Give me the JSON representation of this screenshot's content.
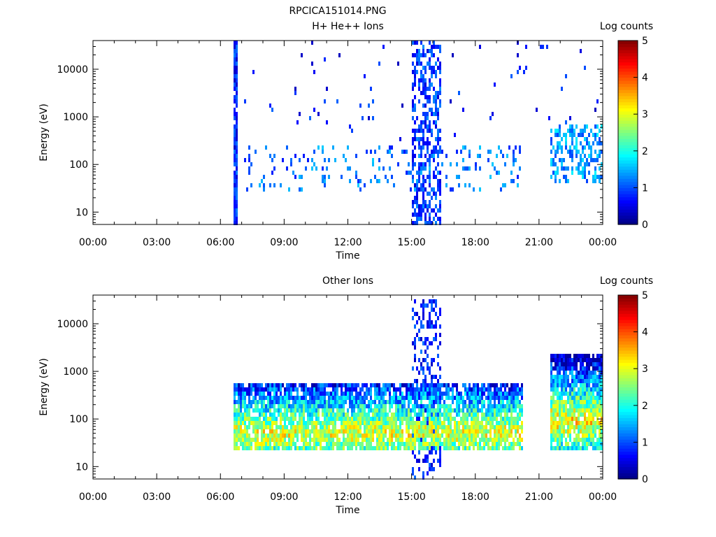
{
  "figure_title": "RPCICA151014.PNG",
  "chart_data": [
    {
      "type": "heatmap",
      "title": "H+ He++ Ions",
      "xlabel": "Time",
      "ylabel": "Energy (eV)",
      "x_ticks": [
        "00:00",
        "03:00",
        "06:00",
        "09:00",
        "12:00",
        "15:00",
        "18:00",
        "21:00",
        "00:00"
      ],
      "xlim_hours": [
        0,
        24
      ],
      "y_scale": "log",
      "y_ticks": [
        "10",
        "100",
        "1000",
        "10000"
      ],
      "ylim": [
        5.5,
        40000
      ],
      "colorbar": {
        "label": "Log counts",
        "ticks": [
          "0",
          "1",
          "2",
          "3",
          "4",
          "5"
        ],
        "range": [
          0,
          5
        ],
        "colormap": "jet"
      },
      "features": [
        {
          "description": "narrow burst all energies",
          "t_start_h": 6.55,
          "t_end_h": 6.8,
          "e_min": 5.5,
          "e_max": 40000,
          "level": 0.6,
          "density": 0.95
        },
        {
          "description": "sparse low-energy ions",
          "t_start_h": 7.0,
          "t_end_h": 20.1,
          "e_min": 25,
          "e_max": 250,
          "level": 1.0,
          "density": 0.14
        },
        {
          "description": "scattered high-energy counts",
          "t_start_h": 7.0,
          "t_end_h": 24,
          "e_min": 250,
          "e_max": 40000,
          "level": 0.5,
          "density": 0.012
        },
        {
          "description": "burst around 15:30",
          "t_start_h": 15.0,
          "t_end_h": 16.3,
          "e_min": 5.5,
          "e_max": 40000,
          "level": 0.7,
          "density": 0.5
        },
        {
          "description": "late-day ions",
          "t_start_h": 21.5,
          "t_end_h": 24,
          "e_min": 40,
          "e_max": 700,
          "level": 1.2,
          "density": 0.45
        }
      ]
    },
    {
      "type": "heatmap",
      "title": "Other Ions",
      "xlabel": "Time",
      "ylabel": "Energy (eV)",
      "x_ticks": [
        "00:00",
        "03:00",
        "06:00",
        "09:00",
        "12:00",
        "15:00",
        "18:00",
        "21:00",
        "00:00"
      ],
      "xlim_hours": [
        0,
        24
      ],
      "y_scale": "log",
      "y_ticks": [
        "10",
        "100",
        "1000",
        "10000"
      ],
      "ylim": [
        5.5,
        40000
      ],
      "colorbar": {
        "label": "Log counts",
        "ticks": [
          "0",
          "1",
          "2",
          "3",
          "4",
          "5"
        ],
        "range": [
          0,
          5
        ],
        "colormap": "jet"
      },
      "features": [
        {
          "description": "continuous band",
          "t_start_h": 6.55,
          "t_end_h": 20.2,
          "e_min": 20,
          "e_max": 600,
          "peak_e": 50,
          "peak_level": 3.0,
          "density": 0.85
        },
        {
          "description": "burst around 15:30",
          "t_start_h": 15.0,
          "t_end_h": 16.3,
          "e_min": 5.5,
          "e_max": 30000,
          "level": 0.6,
          "density": 0.35
        },
        {
          "description": "late-day band",
          "t_start_h": 21.5,
          "t_end_h": 24,
          "e_min": 20,
          "e_max": 2500,
          "peak_e": 90,
          "peak_level": 3.2,
          "density": 0.9
        }
      ]
    }
  ]
}
